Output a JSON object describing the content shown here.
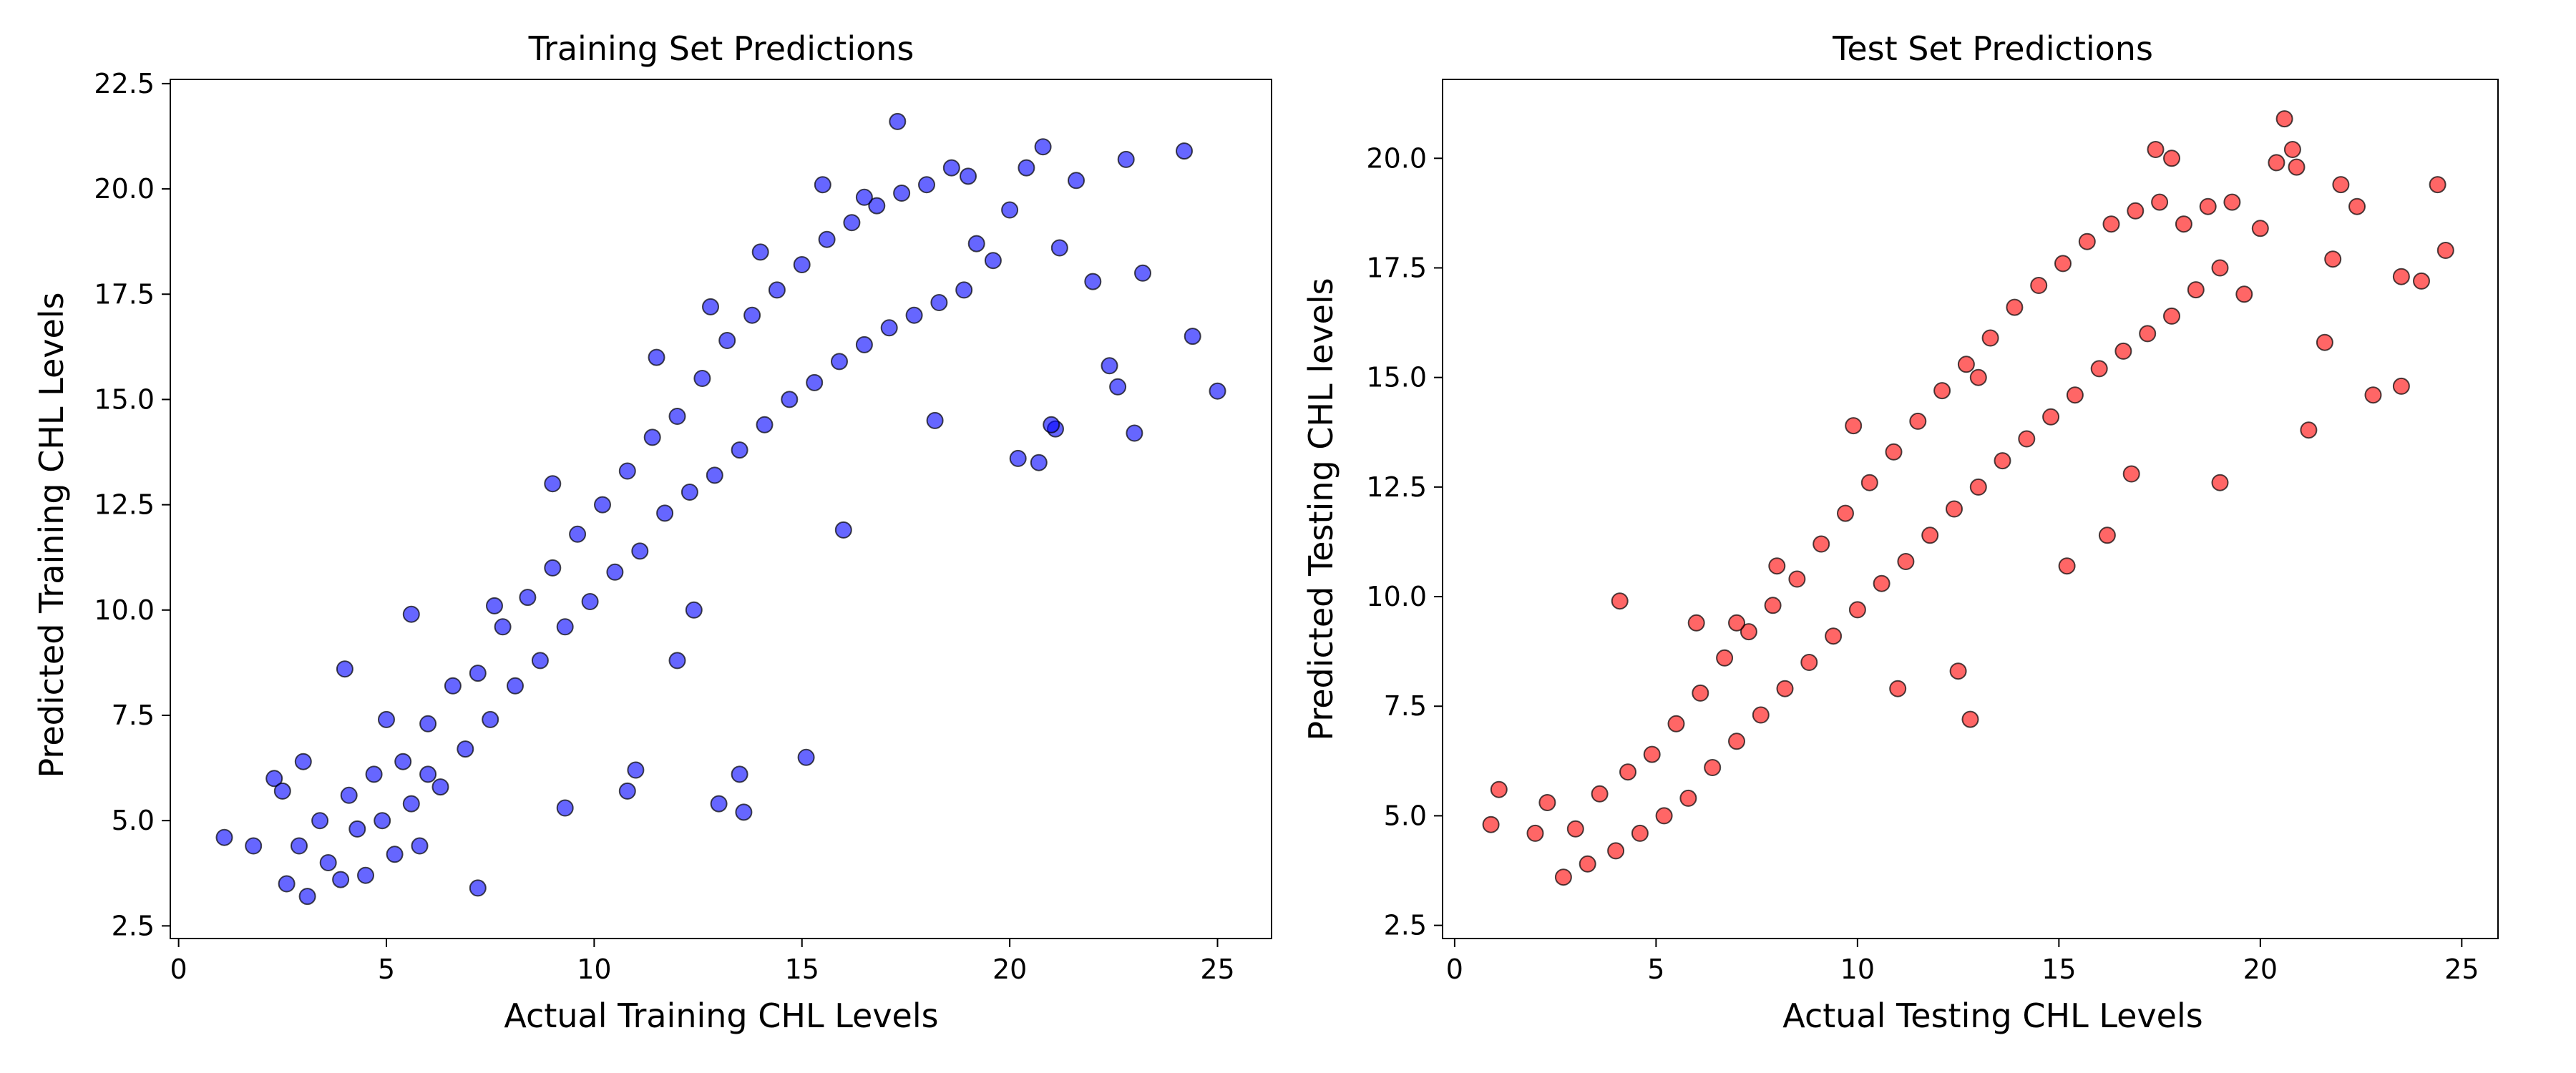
{
  "chart_data": [
    {
      "type": "scatter",
      "title": "Training Set Predictions",
      "xlabel": "Actual Training CHL Levels",
      "ylabel": "Predicted Training CHL Levels",
      "xlim": [
        -0.2,
        26.3
      ],
      "ylim": [
        2.2,
        22.6
      ],
      "xticks": [
        "0",
        "5",
        "10",
        "15",
        "20",
        "25"
      ],
      "yticks": [
        "2.5",
        "5.0",
        "7.5",
        "10.0",
        "12.5",
        "15.0",
        "17.5",
        "20.0",
        "22.5"
      ],
      "marker_color": "#0000ff",
      "edge_color": "#000000",
      "grid": false,
      "series": [
        {
          "x": [
            1.1,
            1.8,
            2.3,
            2.5,
            2.6,
            2.9,
            3.1,
            3.4,
            3.6,
            3.9,
            4.1,
            4.3,
            4.5,
            4.7,
            4.9,
            5.2,
            5.4,
            5.6,
            5.8,
            6.0,
            6.3,
            6.6,
            6.9,
            7.2,
            7.5,
            7.8,
            8.1,
            8.4,
            8.7,
            9.0,
            9.3,
            9.6,
            9.9,
            10.2,
            10.5,
            10.8,
            11.1,
            11.4,
            11.7,
            12.0,
            12.3,
            12.6,
            12.9,
            13.2,
            13.5,
            13.8,
            14.1,
            14.4,
            14.7,
            15.0,
            15.3,
            15.6,
            15.9,
            16.2,
            16.5,
            16.8,
            17.1,
            17.4,
            17.7,
            18.0,
            18.3,
            18.6,
            18.9,
            19.2,
            19.6,
            20.0,
            20.4,
            20.8,
            21.2,
            21.6,
            22.0,
            22.4,
            22.8,
            23.2,
            24.2,
            24.4,
            25.0,
            4.0,
            5.6,
            6.0,
            7.2,
            9.3,
            10.8,
            13.6,
            15.1,
            13.0,
            13.5,
            12.0,
            12.4,
            11.0,
            16.0,
            18.2,
            20.7,
            21.1,
            22.6,
            23.0,
            3.0,
            5.0,
            7.6,
            9.0,
            11.5,
            14.0,
            16.5,
            19.0,
            20.2,
            21.0,
            17.3,
            15.5,
            12.8
          ],
          "y": [
            4.6,
            4.4,
            6.0,
            5.7,
            3.5,
            4.4,
            3.2,
            5.0,
            4.0,
            3.6,
            5.6,
            4.8,
            3.7,
            6.1,
            5.0,
            4.2,
            6.4,
            5.4,
            4.4,
            7.3,
            5.8,
            8.2,
            6.7,
            8.5,
            7.4,
            9.6,
            8.2,
            10.3,
            8.8,
            11.0,
            9.6,
            11.8,
            10.2,
            12.5,
            10.9,
            13.3,
            11.4,
            14.1,
            12.3,
            14.6,
            12.8,
            15.5,
            13.2,
            16.4,
            13.8,
            17.0,
            14.4,
            17.6,
            15.0,
            18.2,
            15.4,
            18.8,
            15.9,
            19.2,
            16.3,
            19.6,
            16.7,
            19.9,
            17.0,
            20.1,
            17.3,
            20.5,
            17.6,
            18.7,
            18.3,
            19.5,
            20.5,
            21.0,
            18.6,
            20.2,
            17.8,
            15.8,
            20.7,
            18.0,
            20.9,
            16.5,
            15.2,
            8.6,
            9.9,
            6.1,
            3.4,
            5.3,
            5.7,
            5.2,
            6.5,
            5.4,
            6.1,
            8.8,
            10.0,
            6.2,
            11.9,
            14.5,
            13.5,
            14.3,
            15.3,
            14.2,
            6.4,
            7.4,
            10.1,
            13.0,
            16.0,
            18.5,
            19.8,
            20.3,
            13.6,
            14.4,
            21.6,
            20.1,
            17.2
          ]
        }
      ]
    },
    {
      "type": "scatter",
      "title": "Test Set Predictions",
      "xlabel": "Actual Testing CHL Levels",
      "ylabel": "Predicted Testing CHL levels",
      "xlim": [
        -0.3,
        25.9
      ],
      "ylim": [
        2.2,
        21.8
      ],
      "xticks": [
        "0",
        "5",
        "10",
        "15",
        "20",
        "25"
      ],
      "yticks": [
        "2.5",
        "5.0",
        "7.5",
        "10.0",
        "12.5",
        "15.0",
        "17.5",
        "20.0"
      ],
      "marker_color": "#ff0000",
      "edge_color": "#000000",
      "grid": false,
      "series": [
        {
          "x": [
            0.9,
            1.1,
            2.0,
            2.3,
            2.7,
            3.0,
            3.3,
            3.6,
            4.0,
            4.3,
            4.6,
            4.9,
            5.2,
            5.5,
            5.8,
            6.1,
            6.4,
            6.7,
            7.0,
            7.3,
            7.6,
            7.9,
            8.2,
            8.5,
            8.8,
            9.1,
            9.4,
            9.7,
            10.0,
            10.3,
            10.6,
            10.9,
            11.2,
            11.5,
            11.8,
            12.1,
            12.4,
            12.7,
            13.0,
            13.3,
            13.6,
            13.9,
            14.2,
            14.5,
            14.8,
            15.1,
            15.4,
            15.7,
            16.0,
            16.3,
            16.6,
            16.9,
            17.2,
            17.5,
            17.8,
            18.1,
            18.4,
            18.7,
            19.0,
            19.3,
            19.6,
            20.0,
            20.4,
            20.8,
            21.2,
            21.6,
            22.0,
            22.4,
            22.8,
            23.5,
            24.0,
            24.4,
            24.6,
            4.1,
            6.0,
            11.0,
            12.8,
            12.5,
            9.9,
            15.2,
            16.8,
            19.0,
            20.6,
            20.9,
            21.8,
            23.5,
            16.2,
            13.0,
            8.0,
            7.0,
            17.8,
            17.4
          ],
          "y": [
            4.8,
            5.6,
            4.6,
            5.3,
            3.6,
            4.7,
            3.9,
            5.5,
            4.2,
            6.0,
            4.6,
            6.4,
            5.0,
            7.1,
            5.4,
            7.8,
            6.1,
            8.6,
            6.7,
            9.2,
            7.3,
            9.8,
            7.9,
            10.4,
            8.5,
            11.2,
            9.1,
            11.9,
            9.7,
            12.6,
            10.3,
            13.3,
            10.8,
            14.0,
            11.4,
            14.7,
            12.0,
            15.3,
            12.5,
            15.9,
            13.1,
            16.6,
            13.6,
            17.1,
            14.1,
            17.6,
            14.6,
            18.1,
            15.2,
            18.5,
            15.6,
            18.8,
            16.0,
            19.0,
            16.4,
            18.5,
            17.0,
            18.9,
            17.5,
            19.0,
            16.9,
            18.4,
            19.9,
            20.2,
            13.8,
            15.8,
            19.4,
            18.9,
            14.6,
            14.8,
            17.2,
            19.4,
            17.9,
            9.9,
            9.4,
            7.9,
            7.2,
            8.3,
            13.9,
            10.7,
            12.8,
            12.6,
            20.9,
            19.8,
            17.7,
            17.3,
            11.4,
            15.0,
            10.7,
            9.4,
            20.0,
            20.2
          ]
        }
      ]
    }
  ]
}
